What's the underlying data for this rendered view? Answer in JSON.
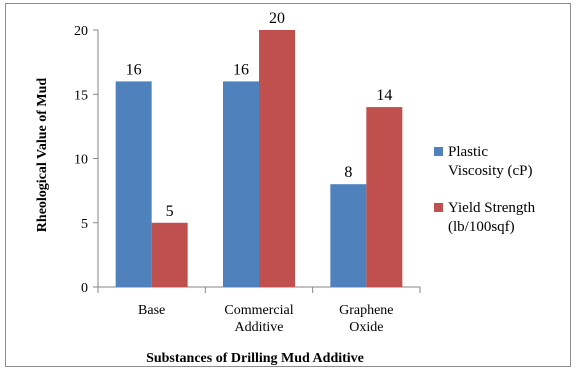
{
  "chart_data": {
    "type": "bar",
    "categories": [
      [
        "Base"
      ],
      [
        "Commercial",
        "Additive"
      ],
      [
        "Graphene",
        "Oxide"
      ]
    ],
    "series": [
      {
        "name": [
          "Plastic",
          "Viscosity (cP)"
        ],
        "values": [
          16,
          16,
          8
        ],
        "color": "#4F81BD"
      },
      {
        "name": [
          "Yield Strength",
          "(lb/100sqf)"
        ],
        "values": [
          5,
          20,
          14
        ],
        "color": "#C0504D"
      }
    ],
    "xlabel": "Substances of Drilling Mud Additive",
    "ylabel": "Rheological Value of Mud",
    "ylim": [
      0,
      20
    ],
    "yticks": [
      0,
      5,
      10,
      15,
      20
    ],
    "grid": false,
    "legend": "right"
  }
}
